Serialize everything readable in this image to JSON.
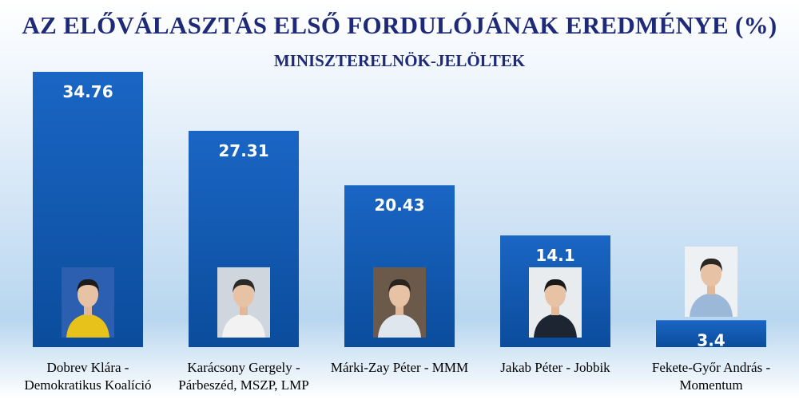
{
  "title": "AZ ELŐVÁLASZTÁS ELSŐ FORDULÓJÁNAK EREDMÉNYE (%)",
  "subtitle": "MINISZTERELNÖK-JELÖLTEK",
  "colors": {
    "bar_top": "#1a66c4",
    "bar_bottom": "#0b4c9c",
    "title": "#1e2a78"
  },
  "chart_data": {
    "type": "bar",
    "title": "AZ ELŐVÁLASZTÁS ELSŐ FORDULÓJÁNAK EREDMÉNYE (%)",
    "subtitle": "MINISZTERELNÖK-JELÖLTEK",
    "categories": [
      "Dobrev Klára - Demokratikus Koalíció",
      "Karácsony Gergely - Párbeszéd, MSZP, LMP",
      "Márki-Zay Péter - MMM",
      "Jakab Péter - Jobbik",
      "Fekete-Győr András - Momentum"
    ],
    "values": [
      34.76,
      27.31,
      20.43,
      14.1,
      3.4
    ],
    "value_labels": [
      "34.76",
      "27.31",
      "20.43",
      "14.1",
      "3.4"
    ],
    "xlabel": "",
    "ylabel": "",
    "ylim": [
      0,
      35
    ],
    "grid": false,
    "legend": "none"
  },
  "label_lines": [
    [
      "Dobrev Klára -",
      "Demokratikus Koalíció"
    ],
    [
      "Karácsony Gergely -",
      "Párbeszéd, MSZP, LMP"
    ],
    [
      "Márki-Zay Péter - MMM"
    ],
    [
      "Jakab Péter - Jobbik"
    ],
    [
      "Fekete-Győr András -",
      "Momentum"
    ]
  ]
}
